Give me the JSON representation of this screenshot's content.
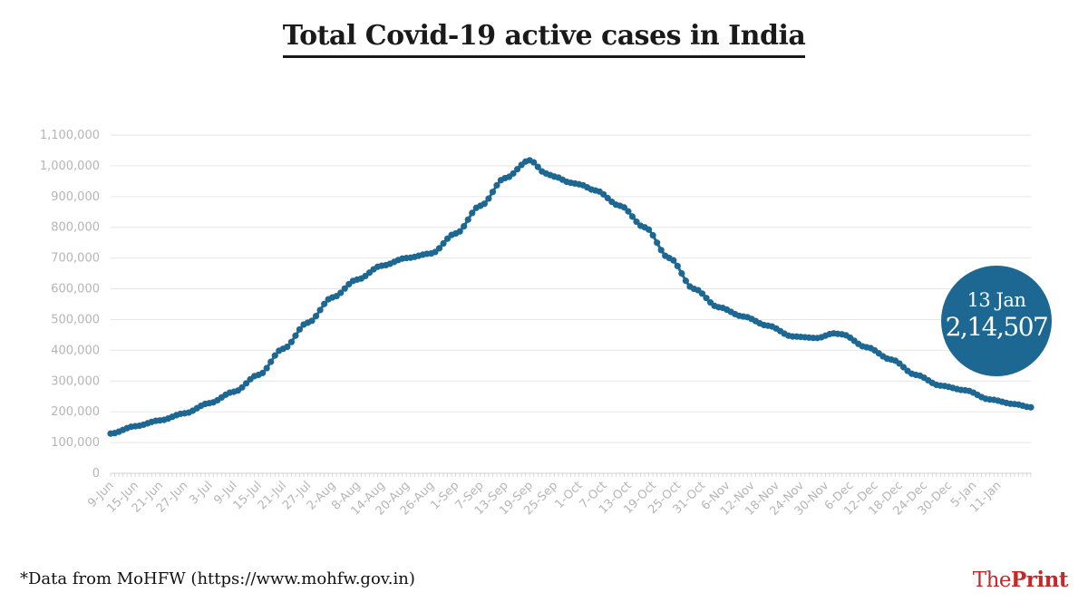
{
  "title": "Total Covid-19 active cases in India",
  "footnote": "*Data from MoHFW (https://www.mohfw.gov.in)",
  "brand": {
    "part1": "The",
    "part2": "Print"
  },
  "callout": {
    "date": "13 Jan",
    "value": "2,14,507"
  },
  "colors": {
    "line": "#1d6893",
    "bubble": "#1d6893",
    "brand": "#c62828",
    "grid": "#e6e6e6",
    "tick": "#b5b5b5"
  },
  "chart_data": {
    "type": "line",
    "title": "Total Covid-19 active cases in India",
    "xlabel": "",
    "ylabel": "",
    "ylim": [
      0,
      1100000
    ],
    "yticks": [
      0,
      100000,
      200000,
      300000,
      400000,
      500000,
      600000,
      700000,
      800000,
      900000,
      1000000,
      1100000
    ],
    "ytick_labels": [
      "0",
      "100,000",
      "200,000",
      "300,000",
      "400,000",
      "500,000",
      "600,000",
      "700,000",
      "800,000",
      "900,000",
      "1,000,000",
      "1,100,000"
    ],
    "start_date": "9-Jun",
    "end_date": "13-Jan",
    "xtick_labels": [
      "9-Jun",
      "15-Jun",
      "21-Jun",
      "27-Jun",
      "3-Jul",
      "9-Jul",
      "15-Jul",
      "21-Jul",
      "27-Jul",
      "2-Aug",
      "8-Aug",
      "14-Aug",
      "20-Aug",
      "26-Aug",
      "1-Sep",
      "7-Sep",
      "13-Sep",
      "19-Sep",
      "25-Sep",
      "1-Oct",
      "7-Oct",
      "13-Oct",
      "19-Oct",
      "25-Oct",
      "31-Oct",
      "6-Nov",
      "12-Nov",
      "18-Nov",
      "24-Nov",
      "30-Nov",
      "6-Dec",
      "12-Dec",
      "18-Dec",
      "24-Dec",
      "30-Dec",
      "5-Jan",
      "11-Jan"
    ],
    "xtick_step_days": 6,
    "anchor_points": [
      {
        "day": 0,
        "value": 129000
      },
      {
        "day": 6,
        "value": 153000
      },
      {
        "day": 12,
        "value": 172000
      },
      {
        "day": 18,
        "value": 195000
      },
      {
        "day": 24,
        "value": 228000
      },
      {
        "day": 30,
        "value": 265000
      },
      {
        "day": 36,
        "value": 320000
      },
      {
        "day": 42,
        "value": 405000
      },
      {
        "day": 48,
        "value": 490000
      },
      {
        "day": 54,
        "value": 572000
      },
      {
        "day": 60,
        "value": 630000
      },
      {
        "day": 66,
        "value": 675000
      },
      {
        "day": 72,
        "value": 700000
      },
      {
        "day": 78,
        "value": 715000
      },
      {
        "day": 84,
        "value": 780000
      },
      {
        "day": 90,
        "value": 870000
      },
      {
        "day": 96,
        "value": 960000
      },
      {
        "day": 102,
        "value": 1018000
      },
      {
        "day": 106,
        "value": 975000
      },
      {
        "day": 108,
        "value": 965000
      },
      {
        "day": 112,
        "value": 945000
      },
      {
        "day": 114,
        "value": 940000
      },
      {
        "day": 118,
        "value": 920000
      },
      {
        "day": 124,
        "value": 870000
      },
      {
        "day": 130,
        "value": 800000
      },
      {
        "day": 136,
        "value": 700000
      },
      {
        "day": 142,
        "value": 600000
      },
      {
        "day": 148,
        "value": 540000
      },
      {
        "day": 154,
        "value": 510000
      },
      {
        "day": 160,
        "value": 480000
      },
      {
        "day": 166,
        "value": 445000
      },
      {
        "day": 172,
        "value": 440000
      },
      {
        "day": 176,
        "value": 455000
      },
      {
        "day": 178,
        "value": 452000
      },
      {
        "day": 184,
        "value": 410000
      },
      {
        "day": 190,
        "value": 370000
      },
      {
        "day": 196,
        "value": 320000
      },
      {
        "day": 202,
        "value": 285000
      },
      {
        "day": 208,
        "value": 270000
      },
      {
        "day": 214,
        "value": 240000
      },
      {
        "day": 220,
        "value": 225000
      },
      {
        "day": 224,
        "value": 214507
      }
    ]
  }
}
